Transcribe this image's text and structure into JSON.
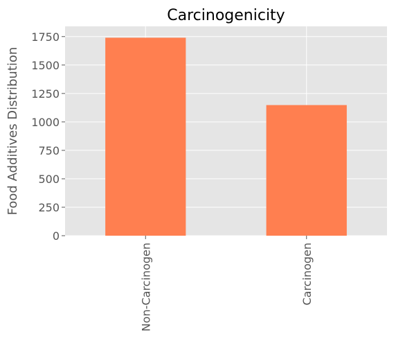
{
  "chart_data": {
    "type": "bar",
    "title": "Carcinogenicity",
    "xlabel": "",
    "ylabel": "Food Additives Distribution",
    "categories": [
      "Non-Carcinogen",
      "Carcinogen"
    ],
    "values": [
      1740,
      1148
    ],
    "ylim": [
      0,
      1840
    ],
    "yticks": [
      0,
      250,
      500,
      750,
      1000,
      1250,
      1500,
      1750
    ],
    "ytick_labels": [
      "0",
      "250",
      "500",
      "750",
      "1000",
      "1250",
      "1500",
      "1750"
    ],
    "grid": true,
    "bar_color": "#ff7f50",
    "background_color": "#e5e5e5",
    "grid_color": "#ffffff"
  }
}
